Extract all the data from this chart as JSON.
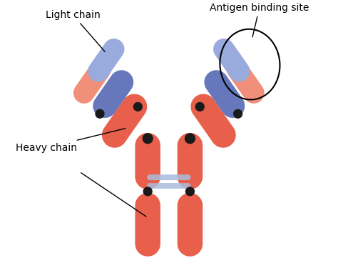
{
  "bg_color": "#ffffff",
  "red_color": "#e8604c",
  "red_light": "#f0907a",
  "blue_dark": "#6677bb",
  "blue_light": "#99aadd",
  "black": "#1a1a1a",
  "connector_color": "#aabbdd",
  "label_light_chain": "Light chain",
  "label_heavy_chain": "Heavy chain",
  "label_antigen": "Antigen binding site",
  "figsize": [
    4.74,
    3.75
  ],
  "dpi": 100
}
